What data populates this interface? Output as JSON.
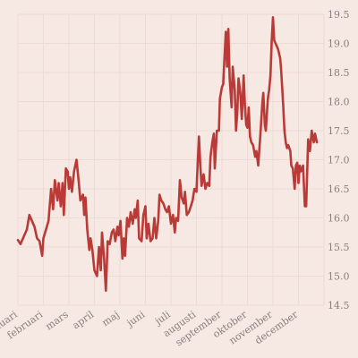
{
  "chart_data": {
    "type": "line",
    "title": "",
    "xlabel": "",
    "ylabel": "",
    "ylim": [
      14.5,
      19.5
    ],
    "y_ticks": [
      "14.5",
      "15.0",
      "15.5",
      "16.0",
      "16.5",
      "17.0",
      "17.5",
      "18.0",
      "18.5",
      "19.0",
      "19.5"
    ],
    "y_axis_side": "right",
    "grid": true,
    "legend": "none",
    "x_range": [
      0,
      12
    ],
    "x_tick_labels": [
      "januari",
      "februari",
      "mars",
      "april",
      "maj",
      "juni",
      "juli",
      "augusti",
      "september",
      "oktober",
      "november",
      "december"
    ],
    "x_unit": "month",
    "series": [
      {
        "color": "#b93a37",
        "points": [
          [
            0.0,
            15.62
          ],
          [
            0.1,
            15.55
          ],
          [
            0.2,
            15.65
          ],
          [
            0.35,
            15.8
          ],
          [
            0.45,
            16.05
          ],
          [
            0.55,
            15.95
          ],
          [
            0.65,
            15.85
          ],
          [
            0.75,
            15.65
          ],
          [
            0.85,
            15.6
          ],
          [
            0.95,
            15.35
          ],
          [
            1.0,
            15.65
          ],
          [
            1.1,
            15.8
          ],
          [
            1.2,
            15.95
          ],
          [
            1.3,
            16.5
          ],
          [
            1.38,
            16.15
          ],
          [
            1.45,
            16.65
          ],
          [
            1.55,
            16.3
          ],
          [
            1.6,
            16.6
          ],
          [
            1.68,
            16.2
          ],
          [
            1.75,
            16.6
          ],
          [
            1.8,
            16.05
          ],
          [
            1.88,
            16.85
          ],
          [
            1.95,
            16.8
          ],
          [
            2.0,
            16.5
          ],
          [
            2.05,
            16.7
          ],
          [
            2.12,
            16.45
          ],
          [
            2.2,
            16.8
          ],
          [
            2.3,
            17.0
          ],
          [
            2.38,
            16.65
          ],
          [
            2.45,
            16.3
          ],
          [
            2.55,
            16.4
          ],
          [
            2.6,
            16.05
          ],
          [
            2.65,
            16.35
          ],
          [
            2.72,
            15.8
          ],
          [
            2.8,
            15.45
          ],
          [
            2.85,
            15.65
          ],
          [
            2.92,
            15.45
          ],
          [
            3.0,
            15.1
          ],
          [
            3.1,
            15.0
          ],
          [
            3.18,
            15.5
          ],
          [
            3.25,
            15.1
          ],
          [
            3.3,
            15.75
          ],
          [
            3.38,
            15.3
          ],
          [
            3.45,
            14.75
          ],
          [
            3.52,
            15.6
          ],
          [
            3.6,
            15.55
          ],
          [
            3.68,
            15.75
          ],
          [
            3.75,
            15.8
          ],
          [
            3.82,
            15.6
          ],
          [
            3.9,
            15.85
          ],
          [
            3.95,
            15.7
          ],
          [
            4.02,
            15.95
          ],
          [
            4.1,
            15.3
          ],
          [
            4.15,
            15.65
          ],
          [
            4.2,
            15.35
          ],
          [
            4.28,
            16.0
          ],
          [
            4.35,
            15.85
          ],
          [
            4.42,
            16.1
          ],
          [
            4.5,
            15.9
          ],
          [
            4.58,
            16.15
          ],
          [
            4.62,
            16.0
          ],
          [
            4.7,
            16.3
          ],
          [
            4.75,
            15.65
          ],
          [
            4.85,
            15.6
          ],
          [
            4.92,
            16.05
          ],
          [
            5.0,
            16.2
          ],
          [
            5.05,
            15.65
          ],
          [
            5.12,
            15.9
          ],
          [
            5.2,
            15.6
          ],
          [
            5.28,
            15.65
          ],
          [
            5.35,
            16.0
          ],
          [
            5.42,
            15.65
          ],
          [
            5.5,
            15.95
          ],
          [
            5.55,
            16.4
          ],
          [
            5.62,
            16.3
          ],
          [
            5.7,
            16.25
          ],
          [
            5.78,
            16.15
          ],
          [
            5.85,
            16.1
          ],
          [
            5.92,
            16.2
          ],
          [
            6.0,
            15.9
          ],
          [
            6.08,
            16.05
          ],
          [
            6.15,
            15.75
          ],
          [
            6.2,
            16.0
          ],
          [
            6.28,
            15.95
          ],
          [
            6.35,
            16.65
          ],
          [
            6.42,
            16.35
          ],
          [
            6.5,
            16.25
          ],
          [
            6.55,
            16.45
          ],
          [
            6.62,
            16.05
          ],
          [
            6.7,
            16.1
          ],
          [
            6.78,
            16.2
          ],
          [
            6.85,
            16.3
          ],
          [
            6.92,
            16.5
          ],
          [
            7.0,
            16.45
          ],
          [
            7.05,
            16.95
          ],
          [
            7.1,
            17.4
          ],
          [
            7.15,
            16.9
          ],
          [
            7.2,
            16.55
          ],
          [
            7.28,
            16.75
          ],
          [
            7.35,
            16.5
          ],
          [
            7.42,
            16.6
          ],
          [
            7.5,
            16.55
          ],
          [
            7.55,
            17.05
          ],
          [
            7.62,
            17.3
          ],
          [
            7.68,
            17.45
          ],
          [
            7.72,
            16.85
          ],
          [
            7.8,
            17.5
          ],
          [
            7.88,
            17.5
          ],
          [
            7.92,
            18.05
          ],
          [
            8.0,
            18.25
          ],
          [
            8.05,
            18.3
          ],
          [
            8.1,
            18.75
          ],
          [
            8.15,
            19.2
          ],
          [
            8.2,
            18.6
          ],
          [
            8.25,
            19.25
          ],
          [
            8.3,
            18.4
          ],
          [
            8.38,
            17.9
          ],
          [
            8.42,
            18.6
          ],
          [
            8.5,
            18.2
          ],
          [
            8.55,
            17.5
          ],
          [
            8.6,
            17.8
          ],
          [
            8.65,
            18.4
          ],
          [
            8.72,
            18.15
          ],
          [
            8.78,
            17.7
          ],
          [
            8.85,
            18.45
          ],
          [
            8.9,
            17.95
          ],
          [
            8.95,
            17.6
          ],
          [
            9.0,
            17.55
          ],
          [
            9.05,
            17.9
          ],
          [
            9.1,
            17.4
          ],
          [
            9.15,
            17.3
          ],
          [
            9.22,
            17.25
          ],
          [
            9.3,
            17.05
          ],
          [
            9.35,
            17.15
          ],
          [
            9.42,
            16.9
          ],
          [
            9.5,
            17.4
          ],
          [
            9.58,
            17.95
          ],
          [
            9.62,
            18.15
          ],
          [
            9.68,
            17.6
          ],
          [
            9.72,
            17.5
          ],
          [
            9.8,
            18.05
          ],
          [
            9.85,
            18.2
          ],
          [
            9.9,
            18.45
          ],
          [
            9.95,
            19.05
          ],
          [
            10.0,
            19.45
          ],
          [
            10.05,
            19.05
          ],
          [
            10.1,
            19.0
          ],
          [
            10.2,
            18.9
          ],
          [
            10.28,
            18.75
          ],
          [
            10.32,
            18.55
          ],
          [
            10.4,
            17.95
          ],
          [
            10.45,
            17.5
          ],
          [
            10.5,
            17.3
          ],
          [
            10.55,
            17.2
          ],
          [
            10.6,
            17.25
          ],
          [
            10.68,
            17.15
          ],
          [
            10.72,
            16.9
          ],
          [
            10.78,
            16.85
          ],
          [
            10.85,
            16.5
          ],
          [
            10.9,
            16.9
          ],
          [
            10.95,
            16.95
          ],
          [
            11.0,
            16.6
          ],
          [
            11.05,
            16.9
          ],
          [
            11.1,
            16.8
          ],
          [
            11.18,
            16.9
          ],
          [
            11.25,
            16.2
          ],
          [
            11.3,
            16.2
          ],
          [
            11.38,
            17.35
          ],
          [
            11.45,
            17.15
          ],
          [
            11.52,
            17.5
          ],
          [
            11.6,
            17.3
          ],
          [
            11.65,
            17.45
          ],
          [
            11.72,
            17.3
          ]
        ]
      }
    ]
  }
}
